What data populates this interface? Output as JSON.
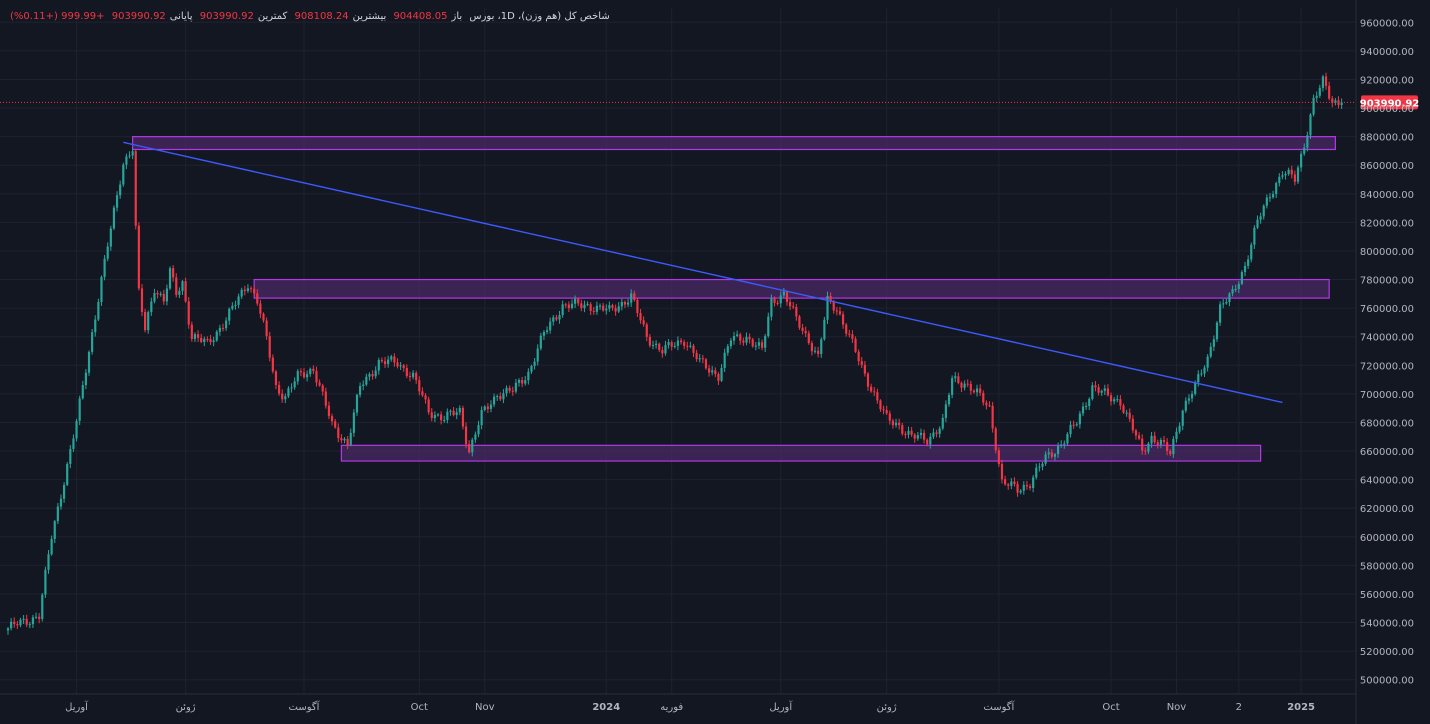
{
  "legend": {
    "title": "شاخص کل (هم وزن)، 1D، بورس",
    "open_label": "باز",
    "open_value": "904408.05",
    "high_label": "بیشترین",
    "high_value": "908108.24",
    "low_label": "کمترین",
    "low_value": "903990.92",
    "close_label": "پایانی",
    "close_value": "903990.92",
    "change": "+999.99 (+0.11%)"
  },
  "colors": {
    "background": "#131722",
    "grid": "#1e2230",
    "up": "#26a69a",
    "down": "#f23645",
    "zone_fill": "#4a2a66",
    "zone_border": "#b138e6",
    "trendline": "#3d5afe",
    "axis_text": "#b2b5be",
    "price_tag": "#f23645"
  },
  "chart_data": {
    "type": "candlestick",
    "y_axis": {
      "range": [
        490000,
        970000
      ],
      "ticks": [
        "960000.00",
        "940000.00",
        "920000.00",
        "900000.00",
        "880000.00",
        "860000.00",
        "840000.00",
        "820000.00",
        "800000.00",
        "780000.00",
        "760000.00",
        "740000.00",
        "720000.00",
        "700000.00",
        "680000.00",
        "660000.00",
        "640000.00",
        "620000.00",
        "600000.00",
        "580000.00",
        "560000.00",
        "540000.00",
        "520000.00",
        "500000.00"
      ],
      "position": "right"
    },
    "x_axis": {
      "range_index": [
        0,
        414
      ],
      "ticks": [
        {
          "label": "آوریل",
          "i": 22
        },
        {
          "label": "ژوئن",
          "i": 57
        },
        {
          "label": "آگوست",
          "i": 95
        },
        {
          "label": "Oct",
          "i": 132
        },
        {
          "label": "Nov",
          "i": 153
        },
        {
          "label": "2024",
          "i": 192
        },
        {
          "label": "فوریه",
          "i": 213
        },
        {
          "label": "آوریل",
          "i": 248
        },
        {
          "label": "ژوئن",
          "i": 282
        },
        {
          "label": "آگوست",
          "i": 318
        },
        {
          "label": "Oct",
          "i": 354
        },
        {
          "label": "Nov",
          "i": 375
        },
        {
          "label": "2",
          "i": 395
        },
        {
          "label": "2025",
          "i": 415
        }
      ]
    },
    "last_price": {
      "value": 903990.92,
      "label": "903990.92"
    },
    "path_keys": [
      [
        0,
        536000
      ],
      [
        10,
        545000
      ],
      [
        14,
        600000
      ],
      [
        22,
        680000
      ],
      [
        30,
        780000
      ],
      [
        37,
        862000
      ],
      [
        40,
        872000
      ],
      [
        41,
        815000
      ],
      [
        42,
        770000
      ],
      [
        44,
        745000
      ],
      [
        47,
        775000
      ],
      [
        50,
        765000
      ],
      [
        52,
        785000
      ],
      [
        54,
        770000
      ],
      [
        56,
        778000
      ],
      [
        59,
        740000
      ],
      [
        64,
        735000
      ],
      [
        70,
        752000
      ],
      [
        77,
        778000
      ],
      [
        80,
        765000
      ],
      [
        83,
        738000
      ],
      [
        86,
        705000
      ],
      [
        89,
        698000
      ],
      [
        93,
        712000
      ],
      [
        98,
        718000
      ],
      [
        104,
        678000
      ],
      [
        109,
        665000
      ],
      [
        113,
        705000
      ],
      [
        119,
        722000
      ],
      [
        125,
        722000
      ],
      [
        130,
        712000
      ],
      [
        135,
        688000
      ],
      [
        140,
        683000
      ],
      [
        145,
        688000
      ],
      [
        148,
        660000
      ],
      [
        152,
        685000
      ],
      [
        157,
        700000
      ],
      [
        162,
        702000
      ],
      [
        167,
        715000
      ],
      [
        172,
        742000
      ],
      [
        178,
        762000
      ],
      [
        186,
        762000
      ],
      [
        193,
        758000
      ],
      [
        200,
        768000
      ],
      [
        205,
        740000
      ],
      [
        210,
        730000
      ],
      [
        217,
        738000
      ],
      [
        222,
        722000
      ],
      [
        228,
        713000
      ],
      [
        232,
        738000
      ],
      [
        237,
        740000
      ],
      [
        242,
        730000
      ],
      [
        245,
        765000
      ],
      [
        249,
        770000
      ],
      [
        253,
        752000
      ],
      [
        257,
        738000
      ],
      [
        260,
        725000
      ],
      [
        263,
        765000
      ],
      [
        266,
        760000
      ],
      [
        270,
        740000
      ],
      [
        274,
        718000
      ],
      [
        278,
        700000
      ],
      [
        282,
        682000
      ],
      [
        286,
        678000
      ],
      [
        290,
        670000
      ],
      [
        295,
        668000
      ],
      [
        300,
        680000
      ],
      [
        303,
        710000
      ],
      [
        307,
        708000
      ],
      [
        311,
        700000
      ],
      [
        315,
        690000
      ],
      [
        317,
        665000
      ],
      [
        319,
        638000
      ],
      [
        324,
        633000
      ],
      [
        328,
        638000
      ],
      [
        333,
        655000
      ],
      [
        338,
        665000
      ],
      [
        343,
        680000
      ],
      [
        348,
        705000
      ],
      [
        353,
        698000
      ],
      [
        357,
        695000
      ],
      [
        361,
        675000
      ],
      [
        364,
        660000
      ],
      [
        367,
        670000
      ],
      [
        370,
        665000
      ],
      [
        373,
        658000
      ],
      [
        377,
        690000
      ],
      [
        381,
        705000
      ],
      [
        385,
        725000
      ],
      [
        389,
        760000
      ],
      [
        393,
        770000
      ],
      [
        397,
        790000
      ],
      [
        401,
        820000
      ],
      [
        405,
        840000
      ],
      [
        409,
        855000
      ],
      [
        413,
        850000
      ],
      [
        416,
        875000
      ],
      [
        419,
        905000
      ],
      [
        422,
        918000
      ],
      [
        425,
        905000
      ],
      [
        428,
        903991
      ]
    ],
    "zones": [
      {
        "name": "resistance-zone-top",
        "from_i": 40,
        "to_i": 426,
        "low": 871000,
        "high": 880000
      },
      {
        "name": "resistance-zone-mid",
        "from_i": 79,
        "to_i": 424,
        "low": 767000,
        "high": 780000
      },
      {
        "name": "support-zone",
        "from_i": 107,
        "to_i": 402,
        "low": 653000,
        "high": 664000
      }
    ],
    "trendline": {
      "from": {
        "i": 37,
        "v": 876000
      },
      "to": {
        "i": 409,
        "v": 694000
      }
    }
  }
}
